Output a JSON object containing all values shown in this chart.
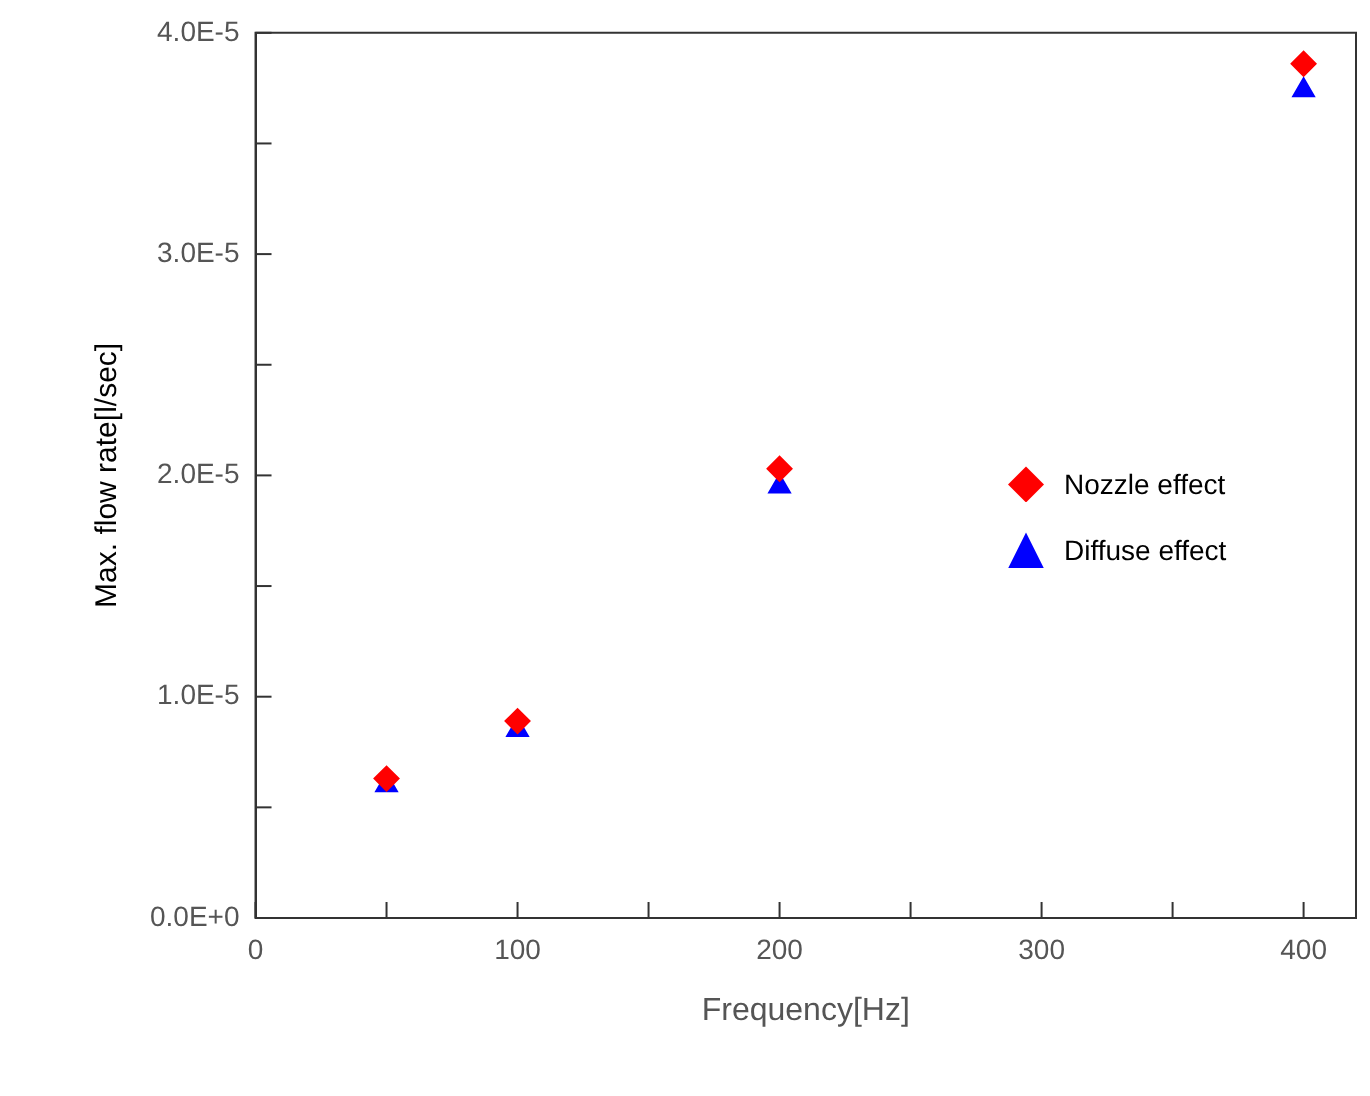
{
  "chart_data": {
    "type": "scatter",
    "xlabel": "Frequency[Hz]",
    "ylabel": "Max. flow rate[l/sec]",
    "xlim": [
      0,
      420
    ],
    "xticks": [
      0,
      {
        "value": 50,
        "label": null
      },
      100,
      {
        "value": 150,
        "label": null
      },
      200,
      {
        "value": 250,
        "label": null
      },
      300,
      {
        "value": 350,
        "label": null
      },
      400
    ],
    "ylim": [
      0,
      4e-05
    ],
    "yticks": [
      {
        "value": 0,
        "label": "0.0E+0"
      },
      {
        "value": 5e-06,
        "label": null
      },
      {
        "value": 1e-05,
        "label": "1.0E-5"
      },
      {
        "value": 1.5e-05,
        "label": null
      },
      {
        "value": 2e-05,
        "label": "2.0E-5"
      },
      {
        "value": 2.5e-05,
        "label": null
      },
      {
        "value": 3e-05,
        "label": "3.0E-5"
      },
      {
        "value": 3.5e-05,
        "label": null
      },
      {
        "value": 4e-05,
        "label": "4.0E-5"
      }
    ],
    "x": [
      50,
      100,
      200,
      400
    ],
    "series": [
      {
        "name": "Nozzle effect",
        "color": "#ff0000",
        "marker": "diamond",
        "values": [
          6.3e-06,
          8.9e-06,
          2.03e-05,
          3.86e-05
        ]
      },
      {
        "name": "Diffuse effect",
        "color": "#0000ff",
        "marker": "triangle",
        "values": [
          6e-06,
          8.5e-06,
          1.95e-05,
          3.74e-05
        ]
      }
    ],
    "grid": false,
    "legend": "right"
  }
}
